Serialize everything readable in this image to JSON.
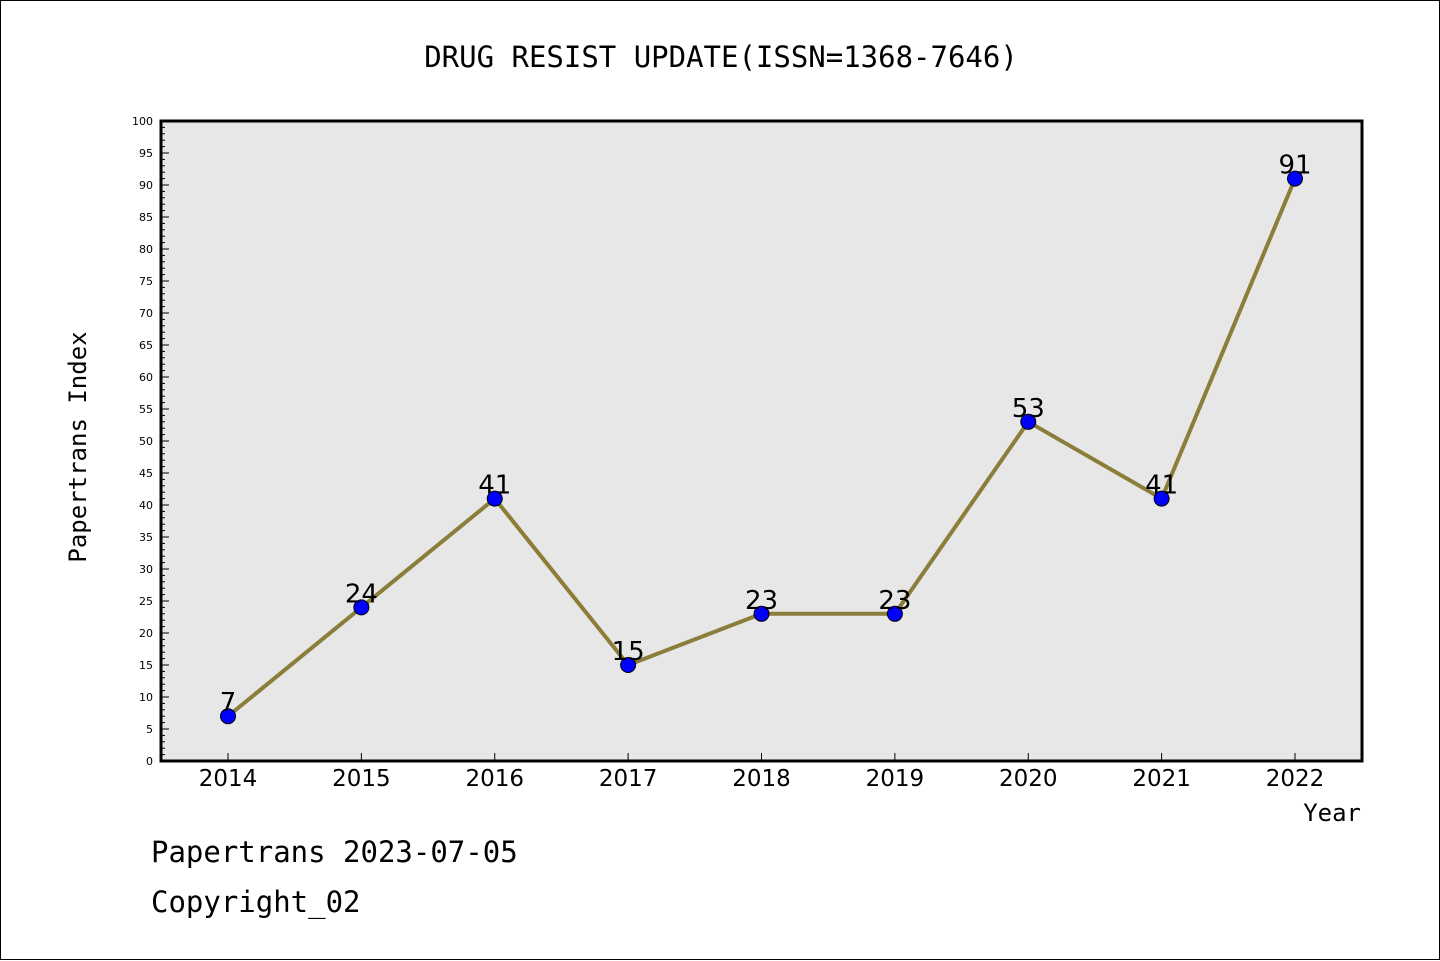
{
  "chart_data": {
    "type": "line",
    "title": "DRUG RESIST UPDATE(ISSN=1368-7646)",
    "xlabel": "Year",
    "ylabel": "Papertrans Index",
    "categories": [
      "2014",
      "2015",
      "2016",
      "2017",
      "2018",
      "2019",
      "2020",
      "2021",
      "2022"
    ],
    "series": [
      {
        "values": [
          7,
          24,
          41,
          15,
          23,
          23,
          53,
          41,
          91
        ]
      }
    ],
    "ylim": [
      0,
      100
    ],
    "ytick_step": 5,
    "grid": false,
    "colors": {
      "line": "#8B7D3A",
      "marker": "#0000FF",
      "plot_background": "#E7E7E7"
    }
  },
  "footer": {
    "line1": "Papertrans 2023-07-05",
    "line2": "Copyright_02"
  }
}
